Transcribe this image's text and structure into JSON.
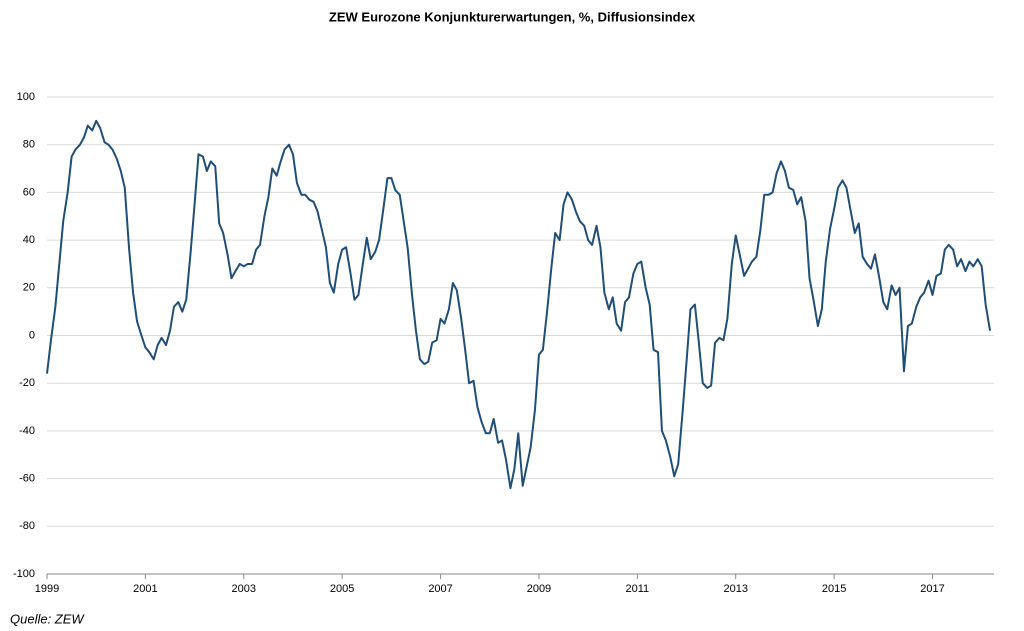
{
  "chart_data": {
    "type": "line",
    "title": "ZEW Eurozone Konjunkturerwartungen, %, Diffusionsindex",
    "source": "Quelle: ZEW",
    "xlim": [
      1999,
      2018.25
    ],
    "xticks": [
      1999,
      2001,
      2003,
      2005,
      2007,
      2009,
      2011,
      2013,
      2015,
      2017
    ],
    "ylim": [
      -100,
      100
    ],
    "yticks": [
      -100,
      -80,
      -60,
      -40,
      -20,
      0,
      20,
      40,
      60,
      80,
      100
    ],
    "grid": true,
    "x": [
      1999,
      1999.08,
      1999.17,
      1999.25,
      1999.33,
      1999.42,
      1999.5,
      1999.58,
      1999.67,
      1999.75,
      1999.83,
      1999.92,
      2000,
      2000.08,
      2000.17,
      2000.25,
      2000.33,
      2000.42,
      2000.5,
      2000.58,
      2000.67,
      2000.75,
      2000.83,
      2000.92,
      2001,
      2001.08,
      2001.17,
      2001.25,
      2001.33,
      2001.42,
      2001.5,
      2001.58,
      2001.67,
      2001.75,
      2001.83,
      2001.92,
      2002,
      2002.08,
      2002.17,
      2002.25,
      2002.33,
      2002.42,
      2002.5,
      2002.58,
      2002.67,
      2002.75,
      2002.83,
      2002.92,
      2003,
      2003.08,
      2003.17,
      2003.25,
      2003.33,
      2003.42,
      2003.5,
      2003.58,
      2003.67,
      2003.75,
      2003.83,
      2003.92,
      2004,
      2004.08,
      2004.17,
      2004.25,
      2004.33,
      2004.42,
      2004.5,
      2004.58,
      2004.67,
      2004.75,
      2004.83,
      2004.92,
      2005,
      2005.08,
      2005.17,
      2005.25,
      2005.33,
      2005.42,
      2005.5,
      2005.58,
      2005.67,
      2005.75,
      2005.83,
      2005.92,
      2006,
      2006.08,
      2006.17,
      2006.25,
      2006.33,
      2006.42,
      2006.5,
      2006.58,
      2006.67,
      2006.75,
      2006.83,
      2006.92,
      2007,
      2007.08,
      2007.17,
      2007.25,
      2007.33,
      2007.42,
      2007.5,
      2007.58,
      2007.67,
      2007.75,
      2007.83,
      2007.92,
      2008,
      2008.08,
      2008.17,
      2008.25,
      2008.33,
      2008.42,
      2008.5,
      2008.58,
      2008.67,
      2008.75,
      2008.83,
      2008.92,
      2009,
      2009.08,
      2009.17,
      2009.25,
      2009.33,
      2009.42,
      2009.5,
      2009.58,
      2009.67,
      2009.75,
      2009.83,
      2009.92,
      2010,
      2010.08,
      2010.17,
      2010.25,
      2010.33,
      2010.42,
      2010.5,
      2010.58,
      2010.67,
      2010.75,
      2010.83,
      2010.92,
      2011,
      2011.08,
      2011.17,
      2011.25,
      2011.33,
      2011.42,
      2011.5,
      2011.58,
      2011.67,
      2011.75,
      2011.83,
      2011.92,
      2012,
      2012.08,
      2012.17,
      2012.25,
      2012.33,
      2012.42,
      2012.5,
      2012.58,
      2012.67,
      2012.75,
      2012.83,
      2012.92,
      2013,
      2013.08,
      2013.17,
      2013.25,
      2013.33,
      2013.42,
      2013.5,
      2013.58,
      2013.67,
      2013.75,
      2013.83,
      2013.92,
      2014,
      2014.08,
      2014.17,
      2014.25,
      2014.33,
      2014.42,
      2014.5,
      2014.58,
      2014.67,
      2014.75,
      2014.83,
      2014.92,
      2015,
      2015.08,
      2015.17,
      2015.25,
      2015.33,
      2015.42,
      2015.5,
      2015.58,
      2015.67,
      2015.75,
      2015.83,
      2015.92,
      2016,
      2016.08,
      2016.17,
      2016.25,
      2016.33,
      2016.42,
      2016.5,
      2016.58,
      2016.67,
      2016.75,
      2016.83,
      2016.92,
      2017,
      2017.08,
      2017.17,
      2017.25,
      2017.33,
      2017.42,
      2017.5,
      2017.58,
      2017.67,
      2017.75,
      2017.83,
      2017.92,
      2018,
      2018.08,
      2018.17
    ],
    "series": [
      {
        "name": "ZEW Eurozone",
        "color": "#1f4e79",
        "values": [
          -16,
          -2,
          12,
          30,
          48,
          60,
          75,
          78,
          80,
          83,
          88,
          86,
          90,
          87,
          81,
          80,
          78,
          74,
          69,
          62,
          36,
          18,
          6,
          0,
          -5,
          -7,
          -10,
          -4,
          -1,
          -4,
          2,
          12,
          14,
          10,
          15,
          35,
          55,
          76,
          75,
          69,
          73,
          71,
          47,
          43,
          34,
          24,
          27,
          30,
          29,
          30,
          30,
          36,
          38,
          50,
          58,
          70,
          67,
          73,
          78,
          80,
          76,
          64,
          59,
          59,
          57,
          56,
          52,
          45,
          37,
          22,
          18,
          30,
          36,
          37,
          26,
          15,
          17,
          30,
          41,
          32,
          35,
          40,
          52,
          66,
          66,
          61,
          59,
          48,
          37,
          17,
          2,
          -10,
          -12,
          -11,
          -3,
          -2,
          7,
          5,
          11,
          22,
          19,
          7,
          -6,
          -20,
          -19,
          -30,
          -36,
          -41,
          -41,
          -35,
          -45,
          -44,
          -52,
          -64,
          -56,
          -41,
          -63,
          -55,
          -47,
          -31,
          -8,
          -6,
          11,
          28,
          43,
          40,
          55,
          60,
          57,
          52,
          48,
          46,
          40,
          38,
          46,
          37,
          18,
          11,
          16,
          5,
          2,
          14,
          16,
          26,
          30,
          31,
          20,
          13,
          -6,
          -7,
          -40,
          -44,
          -51,
          -59,
          -54,
          -32,
          -11,
          11,
          13,
          -3,
          -20,
          -22,
          -21,
          -3,
          -1,
          -2,
          7,
          30,
          42,
          34,
          25,
          28,
          31,
          33,
          44,
          59,
          59,
          60,
          68,
          73,
          69,
          62,
          61,
          55,
          58,
          48,
          24,
          15,
          4,
          11,
          31,
          45,
          53,
          62,
          65,
          62,
          53,
          43,
          47,
          33,
          30,
          28,
          34,
          24,
          14,
          11,
          21,
          17,
          20,
          -15,
          4,
          5,
          12,
          16,
          18,
          23,
          17,
          25,
          26,
          36,
          38,
          36,
          29,
          32,
          27,
          31,
          29,
          32,
          29,
          13,
          2
        ]
      }
    ]
  }
}
